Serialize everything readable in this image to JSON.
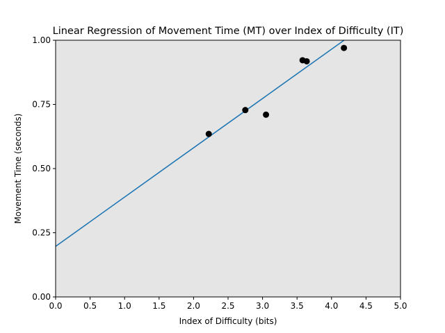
{
  "chart_data": {
    "type": "scatter",
    "title": "Linear Regression of Movement Time (MT) over Index of Difficulty (IT)",
    "xlabel": "Index of Difficulty (bits)",
    "ylabel": "Movement Time (seconds)",
    "xlim": [
      0.0,
      5.0
    ],
    "ylim": [
      0.0,
      1.0
    ],
    "xticks": [
      "0.0",
      "0.5",
      "1.0",
      "1.5",
      "2.0",
      "2.5",
      "3.0",
      "3.5",
      "4.0",
      "4.5",
      "5.0"
    ],
    "yticks": [
      "0.00",
      "0.25",
      "0.50",
      "0.75",
      "1.00"
    ],
    "grid": false,
    "background_color": "#e5e5e5",
    "points": {
      "color": "#000000",
      "x": [
        2.22,
        2.75,
        3.05,
        3.58,
        3.64,
        4.18
      ],
      "y": [
        0.635,
        0.728,
        0.71,
        0.922,
        0.918,
        0.97
      ]
    },
    "regression_line": {
      "color": "#1f77b4",
      "intercept": 0.197,
      "slope": 0.192
    }
  }
}
